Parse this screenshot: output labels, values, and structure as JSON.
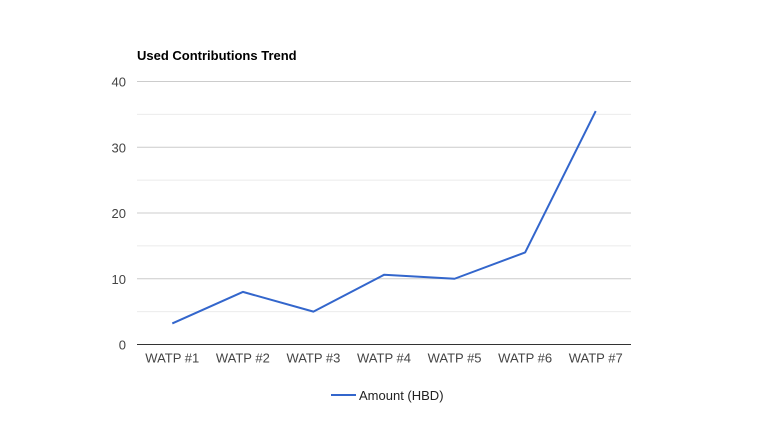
{
  "chart_data": {
    "type": "line",
    "title": "Used Contributions Trend",
    "xlabel": "",
    "ylabel": "",
    "categories": [
      "WATP #1",
      "WATP #2",
      "WATP #3",
      "WATP #4",
      "WATP #5",
      "WATP #6",
      "WATP #7"
    ],
    "series": [
      {
        "name": "Amount (HBD)",
        "values": [
          3.2,
          8.0,
          5.0,
          10.6,
          10.0,
          14.0,
          35.5
        ],
        "color": "#3366cc"
      }
    ],
    "ylim": [
      0,
      40
    ],
    "y_ticks": [
      0,
      10,
      20,
      30,
      40
    ],
    "grid": true,
    "legend_position": "bottom"
  }
}
